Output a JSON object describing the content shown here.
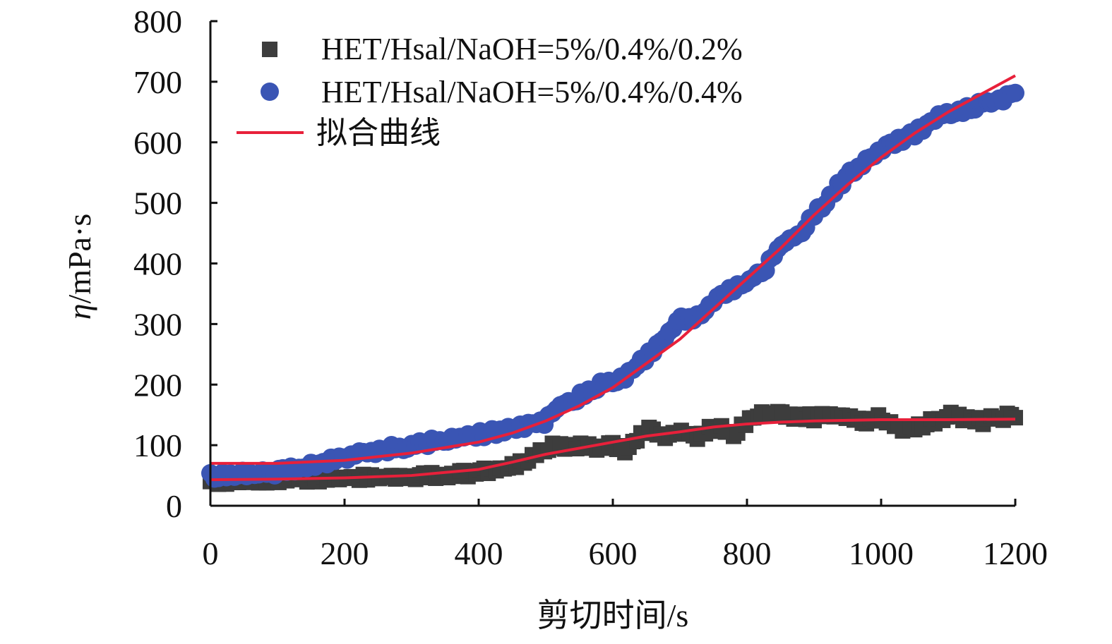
{
  "chart_data": {
    "type": "scatter",
    "title": "",
    "xlabel": "剪切时间/s",
    "ylabel_symbol": "η",
    "ylabel_unit": "/mPa·s",
    "xlim": [
      0,
      1200
    ],
    "ylim": [
      0,
      800
    ],
    "x_ticks": [
      0,
      200,
      400,
      600,
      800,
      1000,
      1200
    ],
    "y_ticks": [
      0,
      100,
      200,
      300,
      400,
      500,
      600,
      700,
      800
    ],
    "x_tick_labels": [
      "0",
      "200",
      "400",
      "600",
      "800",
      "1000",
      "1200"
    ],
    "y_tick_labels": [
      "0",
      "100",
      "200",
      "300",
      "400",
      "500",
      "600",
      "700",
      "800"
    ],
    "grid": false,
    "legend_position": "top-left",
    "series": [
      {
        "name": "HET/Hsal/NaOH=5%/0.4%/0.2%",
        "marker": "square",
        "color": "#3d3d3d",
        "x": [
          0,
          50,
          100,
          150,
          200,
          250,
          300,
          350,
          400,
          450,
          480,
          500,
          520,
          550,
          580,
          600,
          620,
          650,
          680,
          700,
          730,
          750,
          780,
          800,
          820,
          850,
          880,
          900,
          930,
          950,
          980,
          1000,
          1030,
          1050,
          1080,
          1100,
          1130,
          1150,
          1180,
          1200
        ],
        "values": [
          40,
          42,
          44,
          45,
          46,
          47,
          48,
          50,
          55,
          65,
          80,
          95,
          100,
          98,
          95,
          100,
          90,
          125,
          115,
          120,
          115,
          130,
          120,
          140,
          155,
          150,
          148,
          145,
          150,
          145,
          140,
          148,
          125,
          130,
          140,
          150,
          145,
          140,
          145,
          150
        ]
      },
      {
        "name": "HET/Hsal/NaOH=5%/0.4%/0.4%",
        "marker": "circle",
        "color": "#3a55b4",
        "x": [
          0,
          50,
          100,
          150,
          200,
          250,
          300,
          350,
          400,
          450,
          500,
          520,
          550,
          580,
          600,
          620,
          650,
          680,
          700,
          730,
          750,
          780,
          800,
          830,
          850,
          880,
          900,
          930,
          950,
          980,
          1000,
          1030,
          1050,
          1080,
          1100,
          1130,
          1150,
          1180,
          1200
        ],
        "values": [
          50,
          52,
          55,
          65,
          80,
          92,
          100,
          108,
          118,
          125,
          140,
          165,
          180,
          200,
          205,
          215,
          245,
          280,
          310,
          310,
          340,
          360,
          370,
          395,
          430,
          450,
          480,
          520,
          545,
          570,
          590,
          605,
          615,
          640,
          650,
          655,
          665,
          670,
          685
        ]
      },
      {
        "name": "拟合曲线",
        "kind": "line",
        "color": "#e8203a",
        "x": [
          0,
          100,
          200,
          300,
          400,
          450,
          500,
          550,
          600,
          650,
          700,
          750,
          800,
          850,
          900,
          950,
          1000,
          1050,
          1100,
          1150,
          1200
        ],
        "values": [
          70,
          70,
          75,
          87,
          105,
          120,
          140,
          165,
          195,
          235,
          275,
          325,
          375,
          425,
          480,
          530,
          575,
          615,
          650,
          680,
          710
        ]
      },
      {
        "name": "",
        "kind": "line",
        "color": "#e8203a",
        "x": [
          0,
          100,
          200,
          300,
          400,
          450,
          500,
          550,
          600,
          650,
          700,
          750,
          800,
          850,
          900,
          950,
          1000,
          1100,
          1200
        ],
        "values": [
          43,
          44,
          46,
          50,
          60,
          72,
          85,
          95,
          105,
          115,
          122,
          130,
          135,
          138,
          140,
          141,
          142,
          142,
          143
        ]
      }
    ]
  }
}
